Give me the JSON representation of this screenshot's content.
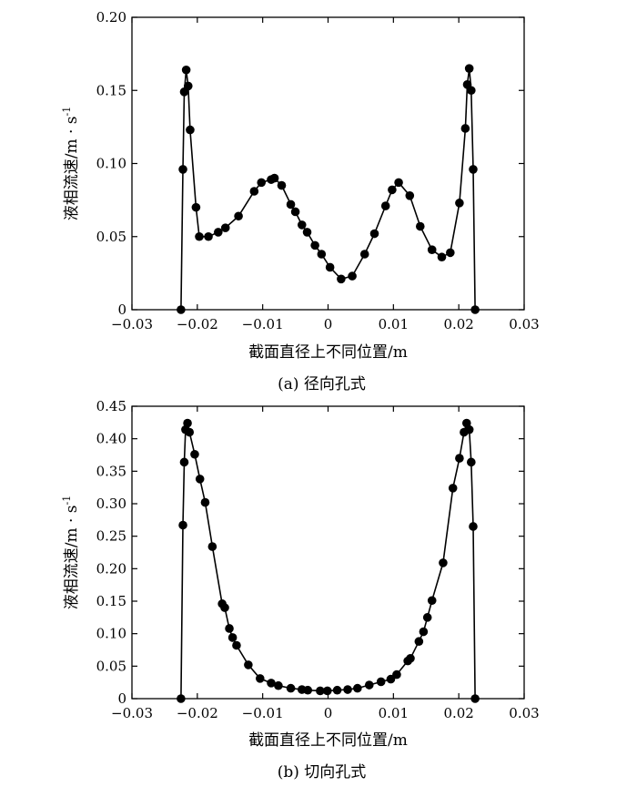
{
  "chart_data": [
    {
      "type": "line",
      "caption": "(a) 径向孔式",
      "xlabel": "截面直径上不同位置/m",
      "ylabel_main": "液相流速/m · s",
      "ylabel_sup": "-1",
      "xlim": [
        -0.03,
        0.03
      ],
      "ylim": [
        0,
        0.2
      ],
      "xticks": [
        -0.03,
        -0.02,
        -0.01,
        0,
        0.01,
        0.02,
        0.03
      ],
      "xtick_labels": [
        "−0.03",
        "−0.02",
        "−0.01",
        "0",
        "0.01",
        "0.02",
        "0.03"
      ],
      "yticks": [
        0,
        0.05,
        0.1,
        0.15,
        0.2
      ],
      "ytick_labels": [
        "0",
        "0.05",
        "0.10",
        "0.15",
        "0.20"
      ],
      "series": [
        {
          "name": "径向孔式",
          "points": [
            [
              -0.0225,
              0.0
            ],
            [
              -0.0222,
              0.096
            ],
            [
              -0.022,
              0.149
            ],
            [
              -0.0217,
              0.164
            ],
            [
              -0.0214,
              0.153
            ],
            [
              -0.0211,
              0.123
            ],
            [
              -0.0202,
              0.07
            ],
            [
              -0.0197,
              0.05
            ],
            [
              -0.0183,
              0.05
            ],
            [
              -0.0168,
              0.053
            ],
            [
              -0.0157,
              0.056
            ],
            [
              -0.0137,
              0.064
            ],
            [
              -0.0113,
              0.081
            ],
            [
              -0.0102,
              0.087
            ],
            [
              -0.0087,
              0.089
            ],
            [
              -0.0082,
              0.09
            ],
            [
              -0.0071,
              0.085
            ],
            [
              -0.0057,
              0.072
            ],
            [
              -0.005,
              0.067
            ],
            [
              -0.004,
              0.058
            ],
            [
              -0.0032,
              0.053
            ],
            [
              -0.002,
              0.044
            ],
            [
              -0.001,
              0.038
            ],
            [
              0.0003,
              0.029
            ],
            [
              0.002,
              0.021
            ],
            [
              0.0037,
              0.023
            ],
            [
              0.0056,
              0.038
            ],
            [
              0.0071,
              0.052
            ],
            [
              0.0088,
              0.071
            ],
            [
              0.0098,
              0.082
            ],
            [
              0.0108,
              0.087
            ],
            [
              0.0125,
              0.078
            ],
            [
              0.0141,
              0.057
            ],
            [
              0.0159,
              0.041
            ],
            [
              0.0174,
              0.036
            ],
            [
              0.0187,
              0.039
            ],
            [
              0.0201,
              0.073
            ],
            [
              0.021,
              0.124
            ],
            [
              0.0213,
              0.154
            ],
            [
              0.0216,
              0.165
            ],
            [
              0.0219,
              0.15
            ],
            [
              0.0222,
              0.096
            ],
            [
              0.0225,
              0.0
            ]
          ]
        }
      ]
    },
    {
      "type": "line",
      "caption": "(b) 切向孔式",
      "xlabel": "截面直径上不同位置/m",
      "ylabel_main": "液相流速/m · s",
      "ylabel_sup": "-1",
      "xlim": [
        -0.03,
        0.03
      ],
      "ylim": [
        0,
        0.45
      ],
      "xticks": [
        -0.03,
        -0.02,
        -0.01,
        0,
        0.01,
        0.02,
        0.03
      ],
      "xtick_labels": [
        "−0.03",
        "−0.02",
        "−0.01",
        "0",
        "0.01",
        "0.02",
        "0.03"
      ],
      "yticks": [
        0,
        0.05,
        0.1,
        0.15,
        0.2,
        0.25,
        0.3,
        0.35,
        0.4,
        0.45
      ],
      "ytick_labels": [
        "0",
        "0.05",
        "0.10",
        "0.15",
        "0.20",
        "0.25",
        "0.30",
        "0.35",
        "0.40",
        "0.45"
      ],
      "series": [
        {
          "name": "切向孔式",
          "points": [
            [
              -0.0225,
              0.0
            ],
            [
              -0.0222,
              0.267
            ],
            [
              -0.022,
              0.364
            ],
            [
              -0.0218,
              0.414
            ],
            [
              -0.0215,
              0.424
            ],
            [
              -0.0212,
              0.41
            ],
            [
              -0.0204,
              0.376
            ],
            [
              -0.0196,
              0.338
            ],
            [
              -0.0188,
              0.302
            ],
            [
              -0.0177,
              0.234
            ],
            [
              -0.0162,
              0.146
            ],
            [
              -0.0158,
              0.14
            ],
            [
              -0.0151,
              0.108
            ],
            [
              -0.0146,
              0.094
            ],
            [
              -0.014,
              0.082
            ],
            [
              -0.0122,
              0.052
            ],
            [
              -0.0104,
              0.031
            ],
            [
              -0.0087,
              0.024
            ],
            [
              -0.0076,
              0.02
            ],
            [
              -0.0057,
              0.016
            ],
            [
              -0.004,
              0.014
            ],
            [
              -0.0031,
              0.013
            ],
            [
              -0.0012,
              0.012
            ],
            [
              -0.0001,
              0.012
            ],
            [
              0.0014,
              0.013
            ],
            [
              0.003,
              0.014
            ],
            [
              0.0045,
              0.016
            ],
            [
              0.0063,
              0.021
            ],
            [
              0.0081,
              0.026
            ],
            [
              0.0096,
              0.03
            ],
            [
              0.0105,
              0.037
            ],
            [
              0.0122,
              0.058
            ],
            [
              0.0126,
              0.062
            ],
            [
              0.0139,
              0.088
            ],
            [
              0.0146,
              0.103
            ],
            [
              0.0152,
              0.125
            ],
            [
              0.0159,
              0.151
            ],
            [
              0.0176,
              0.209
            ],
            [
              0.0191,
              0.324
            ],
            [
              0.0201,
              0.37
            ],
            [
              0.0208,
              0.41
            ],
            [
              0.0212,
              0.424
            ],
            [
              0.0216,
              0.414
            ],
            [
              0.0219,
              0.364
            ],
            [
              0.0222,
              0.265
            ],
            [
              0.0225,
              0.0
            ]
          ]
        }
      ]
    }
  ]
}
